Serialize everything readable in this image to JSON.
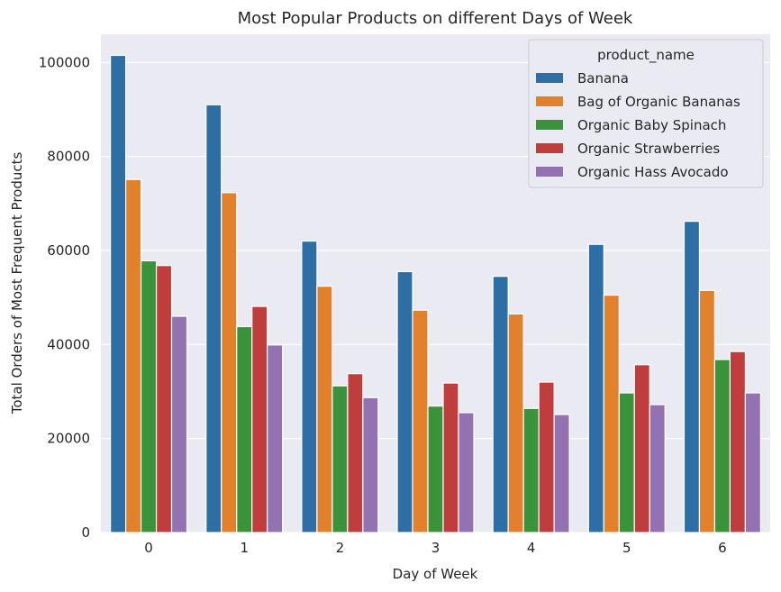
{
  "chart_data": {
    "type": "bar",
    "title": "Most Popular Products on different Days of Week",
    "xlabel": "Day of Week",
    "ylabel": "Total Orders of Most Frequent Products",
    "categories": [
      "0",
      "1",
      "2",
      "3",
      "4",
      "5",
      "6"
    ],
    "ylim": [
      0,
      106000
    ],
    "yticks": [
      0,
      20000,
      40000,
      60000,
      80000,
      100000
    ],
    "grid": true,
    "legend": {
      "title": "product_name",
      "placement": "top-right"
    },
    "series": [
      {
        "name": "Banana",
        "color": "#2d6fa5",
        "values": [
          101500,
          91000,
          62000,
          55500,
          54500,
          61300,
          66200
        ]
      },
      {
        "name": "Bag of Organic Bananas",
        "color": "#e1812c",
        "values": [
          75100,
          72300,
          52400,
          47300,
          46500,
          50500,
          51500
        ]
      },
      {
        "name": "Organic Baby Spinach",
        "color": "#3a923a",
        "values": [
          57800,
          43800,
          31200,
          26900,
          26400,
          29700,
          36800
        ]
      },
      {
        "name": "Organic Strawberries",
        "color": "#c03d3e",
        "values": [
          56800,
          48100,
          33800,
          31800,
          32000,
          35700,
          38500
        ]
      },
      {
        "name": "Organic Hass Avocado",
        "color": "#9372b2",
        "values": [
          46000,
          39900,
          28700,
          25500,
          25100,
          27200,
          29700
        ]
      }
    ]
  }
}
